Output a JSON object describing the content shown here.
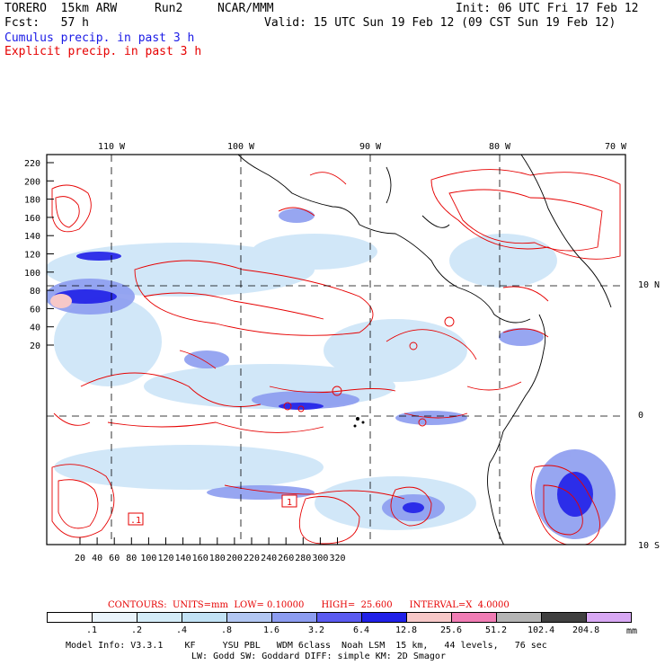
{
  "header": {
    "model": "TORERO  15km ARW",
    "run": "Run2",
    "org": "NCAR/MMM",
    "init": "Init: 06 UTC Fri 17 Feb 12",
    "fcst": "Fcst:   57 h",
    "valid": "Valid: 15 UTC Sun 19 Feb 12 (09 CST Sun 19 Feb 12)",
    "cumulus": "Cumulus precip. in past 3 h",
    "explicit": "Explicit precip. in past 3 h"
  },
  "map": {
    "top_lon_labels": [
      "110 W",
      "100 W",
      "90 W",
      "80 W",
      "70 W"
    ],
    "right_lat_labels": [
      "10 N",
      "0",
      "10 S"
    ],
    "y_ticks": [
      "220",
      "200",
      "180",
      "160",
      "140",
      "120",
      "100",
      "80",
      "60",
      "40",
      "20"
    ],
    "x_ticks": [
      "20",
      "40",
      "60",
      "80",
      "100",
      "120",
      "140",
      "160",
      "180",
      "200",
      "220",
      "240",
      "260",
      "280",
      "300",
      "320"
    ],
    "boxed_labels": [
      ".1",
      "1"
    ]
  },
  "footer": {
    "contours": "CONTOURS:  UNITS=mm  LOW= 0.10000      HIGH=  25.600      INTERVAL=X  4.0000",
    "legend_values": [
      ".1",
      ".2",
      ".4",
      ".8",
      "1.6",
      "3.2",
      "6.4",
      "12.8",
      "25.6",
      "51.2",
      "102.4",
      "204.8"
    ],
    "legend_unit": "mm",
    "legend_colors": [
      "#ffffff",
      "#eaf4fb",
      "#d4ecf8",
      "#c2e2f5",
      "#b2c6f2",
      "#8c9cf0",
      "#5a5af0",
      "#2020e8",
      "#f7c8c8",
      "#f07cb4",
      "#b4b4b4",
      "#404040",
      "#d8a8f4"
    ],
    "model_info": "Model Info: V3.3.1    KF     YSU PBL   WDM 6class  Noah LSM  15 km,   44 levels,   76 sec",
    "model_info2": "LW: Godd SW: Goddard DIFF: simple KM: 2D Smagor"
  }
}
